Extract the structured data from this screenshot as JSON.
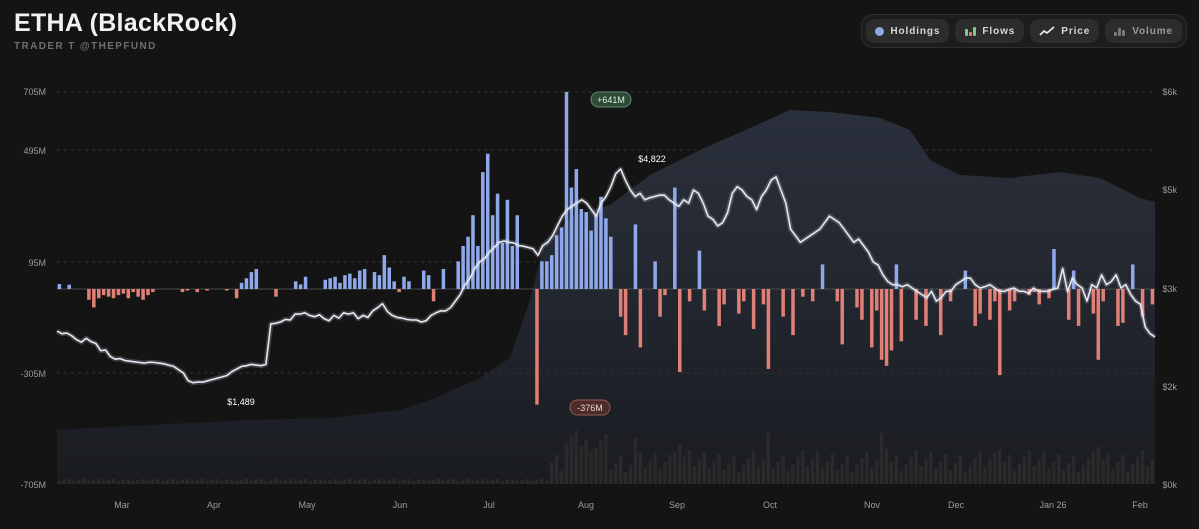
{
  "header": {
    "title": "ETHA (BlackRock)",
    "subtitle": "TRADER T @THEPFUND"
  },
  "toolbar": {
    "buttons": [
      {
        "label": "Holdings",
        "icon": "dot-icon",
        "active": true
      },
      {
        "label": "Flows",
        "icon": "bar-chart-icon",
        "active": true
      },
      {
        "label": "Price",
        "icon": "line-chart-icon",
        "active": true
      },
      {
        "label": "Volume",
        "icon": "volume-bars-icon",
        "active": false
      }
    ]
  },
  "colors": {
    "inflow": "#8fa8ea",
    "outflow": "#e07f75",
    "price": "#e4e8f5",
    "holdings": "#262b35",
    "volume": "#2a2a2a"
  },
  "chart_data": {
    "type": "bar",
    "title": "ETHA (BlackRock)",
    "left_axis": {
      "ticks": [
        "705M",
        "495M",
        "95M",
        "-305M",
        "-705M"
      ]
    },
    "right_axis": {
      "ticks": [
        "$6k",
        "$5k",
        "$3k",
        "$2k",
        "$0k"
      ]
    },
    "x_ticks": [
      "Mar",
      "Apr",
      "May",
      "Jun",
      "Jul",
      "Aug",
      "Sep",
      "Oct",
      "Nov",
      "Dec",
      "Jan 26",
      "Feb"
    ],
    "annotations": {
      "max_flow": "+641M",
      "min_flow": "-376M",
      "price_high": "$4,822",
      "price_low": "$1,489"
    },
    "series": [
      {
        "name": "Flows",
        "values": [
          16,
          0,
          14,
          0,
          0,
          0,
          -35,
          -60,
          -30,
          -20,
          -25,
          -30,
          -20,
          -15,
          -30,
          -10,
          -25,
          -35,
          -20,
          -10,
          0,
          0,
          0,
          0,
          0,
          -10,
          -5,
          0,
          -10,
          0,
          -5,
          0,
          0,
          0,
          -5,
          0,
          -30,
          20,
          35,
          55,
          65,
          0,
          0,
          0,
          -25,
          0,
          0,
          0,
          25,
          15,
          40,
          0,
          0,
          0,
          30,
          35,
          40,
          20,
          45,
          50,
          35,
          60,
          65,
          0,
          55,
          45,
          110,
          70,
          25,
          -10,
          40,
          25,
          0,
          0,
          60,
          45,
          -40,
          0,
          65,
          0,
          0,
          90,
          140,
          170,
          240,
          140,
          380,
          440,
          240,
          310,
          150,
          290,
          140,
          240,
          0,
          0,
          0,
          -376,
          90,
          90,
          110,
          175,
          200,
          641,
          330,
          390,
          260,
          250,
          190,
          240,
          300,
          230,
          170,
          0,
          -90,
          -150,
          0,
          210,
          -190,
          0,
          0,
          90,
          -90,
          -20,
          0,
          330,
          -270,
          0,
          -40,
          0,
          125,
          -70,
          0,
          0,
          -120,
          -50,
          0,
          0,
          -80,
          -40,
          0,
          -130,
          0,
          -50,
          -260,
          0,
          0,
          -90,
          0,
          -150,
          0,
          -25,
          0,
          -40,
          0,
          80,
          0,
          0,
          -40,
          -180,
          0,
          0,
          -60,
          -100,
          0,
          -190,
          -70,
          -230,
          -250,
          -200,
          80,
          -170,
          0,
          0,
          -100,
          0,
          -120,
          0,
          0,
          -150,
          0,
          -40,
          0,
          0,
          60,
          0,
          -120,
          -80,
          0,
          -100,
          -40,
          -280,
          0,
          -70,
          -40,
          0,
          0,
          -20,
          -10,
          -50,
          0,
          -30,
          130,
          0,
          0,
          -100,
          60,
          -120,
          0,
          0,
          -80,
          -230,
          -40,
          0,
          0,
          -120,
          -110,
          0,
          80,
          0,
          -90,
          0,
          -50
        ],
        "color": "#8fa8ea"
      },
      {
        "name": "Price",
        "values": [
          2340,
          2300,
          2310,
          2270,
          2210,
          2170,
          2230,
          2180,
          2150,
          2040,
          2050,
          1950,
          1910,
          1920,
          1890,
          1880,
          1870,
          1860,
          1850,
          1865,
          1860,
          1850,
          1840,
          1820,
          1800,
          1750,
          1700,
          1580,
          1550,
          1560,
          1560,
          1580,
          1600,
          1620,
          1640,
          1660,
          1720,
          1760,
          1800,
          1810,
          1830,
          1820,
          1810,
          1830,
          2450,
          2460,
          2480,
          2520,
          2510,
          2600,
          2600,
          2620,
          2580,
          2560,
          2590,
          2530,
          2500,
          2580,
          2540,
          2620,
          2600,
          2620,
          2530,
          2580,
          2550,
          2650,
          2700,
          2760,
          2640,
          2580,
          2550,
          2540,
          2520,
          2510,
          2510,
          2480,
          2500,
          2580,
          2620,
          2650,
          2650,
          2700,
          2800,
          2900,
          3050,
          3150,
          3300,
          3400,
          3450,
          3550,
          3620,
          3700,
          3720,
          3700,
          3690,
          3650,
          3640,
          3620,
          3600,
          3500,
          3650,
          3700,
          3800,
          3950,
          4100,
          4200,
          4250,
          4300,
          4350,
          4300,
          4200,
          4100,
          4300,
          4400,
          4550,
          4750,
          4822,
          4650,
          4500,
          4400,
          4450,
          4350,
          4380,
          4400,
          4420,
          4420,
          4350,
          4300,
          4250,
          4350,
          4300,
          4500,
          4450,
          4300,
          4100,
          4050,
          3950,
          4000,
          4150,
          4450,
          4550,
          4500,
          4400,
          4350,
          4200,
          4400,
          4500,
          4650,
          4700,
          4500,
          4300,
          3900,
          3800,
          3700,
          3750,
          3800,
          3850,
          3900,
          4000,
          4100,
          4050,
          4000,
          3900,
          3800,
          3700,
          3750,
          3650,
          3550,
          3400,
          3350,
          3200,
          3100,
          3050,
          3050,
          3020,
          3050,
          3000,
          2950,
          2900,
          2850,
          2950,
          2800,
          2850,
          2950,
          2950,
          3050,
          3100,
          3150,
          3150,
          3050,
          3000,
          3020,
          3050,
          3000,
          2950,
          2950,
          2980,
          3000,
          2950,
          2950,
          2920,
          3000,
          2950,
          2950,
          2950,
          2980,
          3000,
          3300,
          2950,
          3150,
          3050,
          3000,
          2800,
          3050,
          3000,
          3200,
          3050,
          3100,
          3200,
          3000,
          3050,
          2900,
          2800,
          2750,
          2400,
          2300,
          2250
        ]
      }
    ]
  }
}
